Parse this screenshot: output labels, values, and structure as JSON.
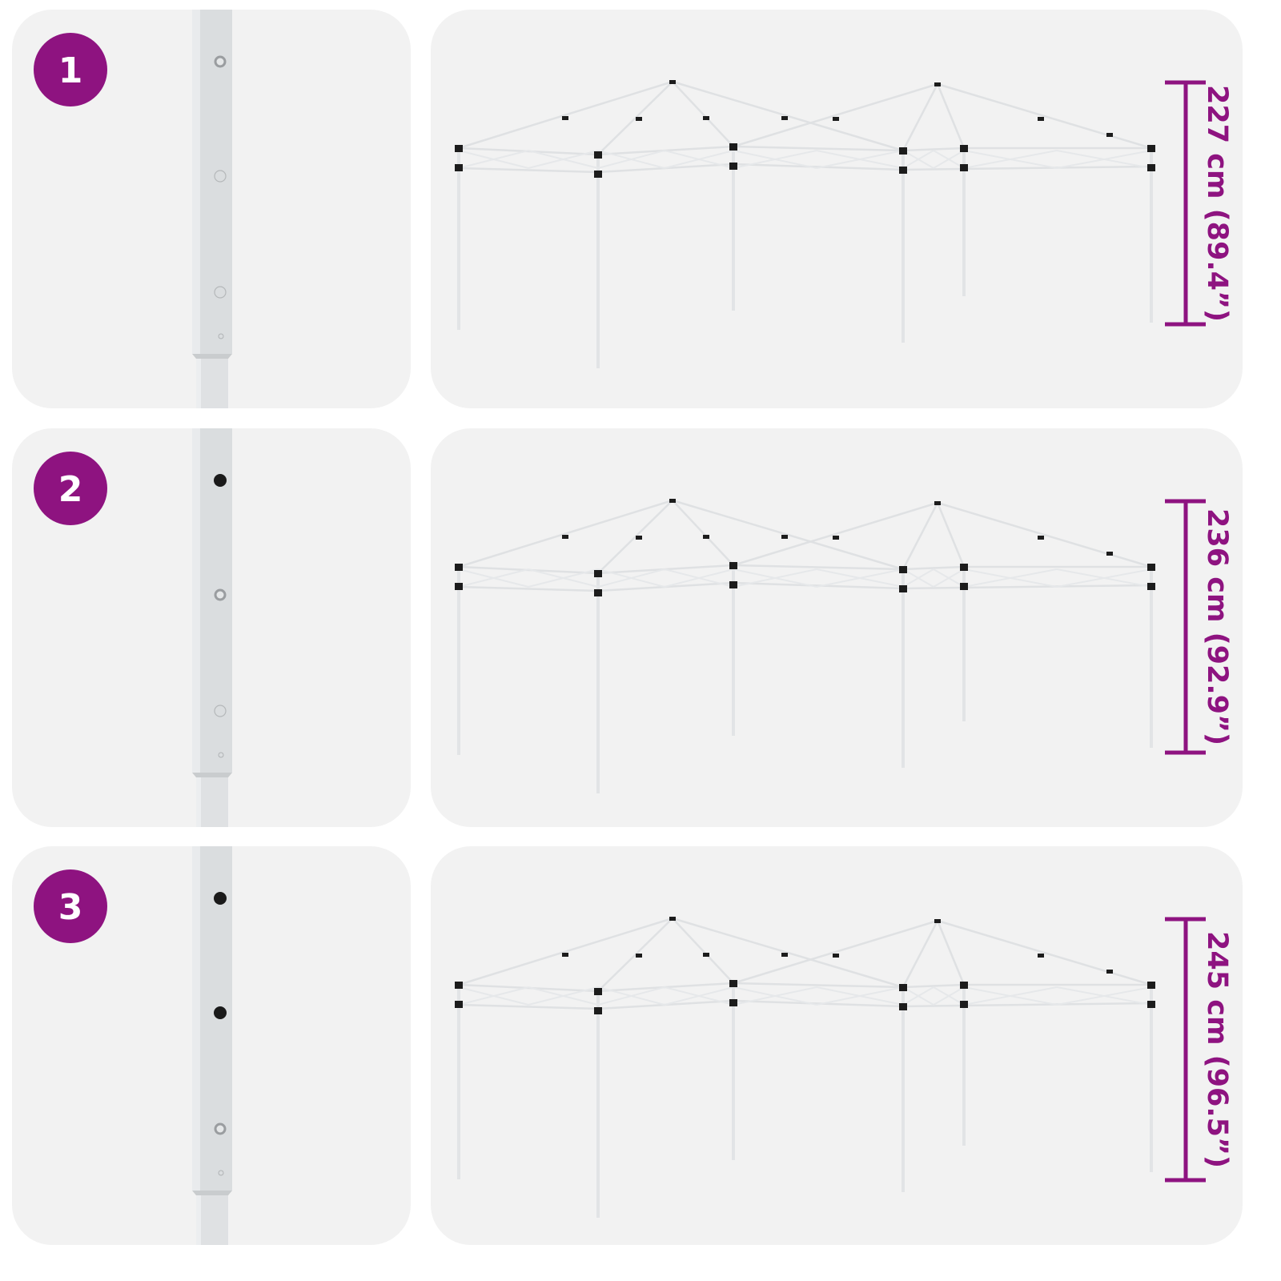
{
  "accent_color": "#8e1380",
  "panel_color": "#f2f2f2",
  "steps": [
    {
      "number": "1",
      "height_label": "227 cm (89.4”)",
      "holes": [
        "button",
        "empty",
        "empty",
        "small"
      ]
    },
    {
      "number": "2",
      "height_label": "236 cm (92.9”)",
      "holes": [
        "black",
        "button",
        "empty",
        "small"
      ]
    },
    {
      "number": "3",
      "height_label": "245 cm (96.5”)",
      "holes": [
        "black",
        "black",
        "button",
        "small"
      ]
    }
  ]
}
